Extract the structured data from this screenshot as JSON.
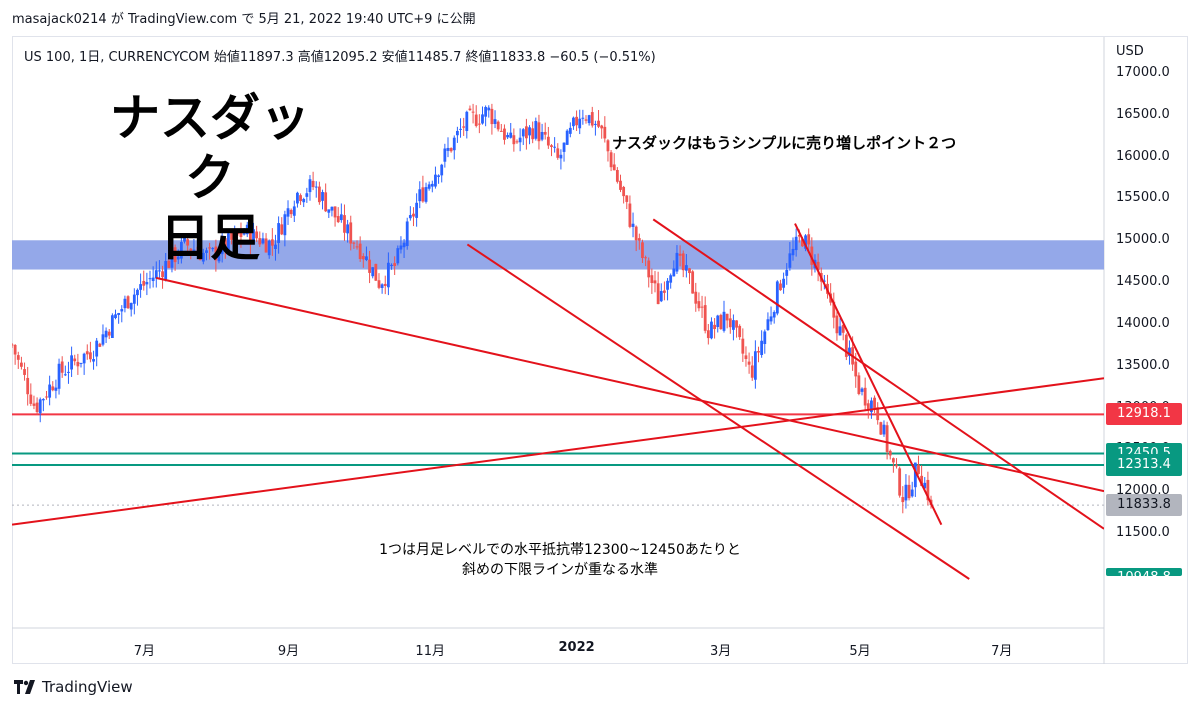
{
  "header": {
    "text": "masajack0214 が TradingView.com で 5月 21, 2022 19:40 UTC+9 に公開"
  },
  "legend": {
    "text": "US 100, 1日, CURRENCYCOM  始値11897.3  高値12095.2  安値11485.7  終値11833.8  −60.5 (−0.51%)"
  },
  "title": {
    "line1": "ナスダック",
    "line2": "日足"
  },
  "annotation_top": "ナスダックはもうシンプルに売り増しポイント２つ",
  "annotation_bottom": {
    "line1": "1つは月足レベルでの水平抵抗帯12300~12450あたりと",
    "line2": "斜めの下限ラインが重なる水準"
  },
  "axis": {
    "currency": "USD"
  },
  "brand": {
    "name": "TradingView"
  },
  "price_tags": [
    {
      "label": "12918.1",
      "value": 12918.1,
      "color": "#f23645"
    },
    {
      "label": "12450.5",
      "value": 12450.5,
      "color": "#089981"
    },
    {
      "label": "12313.4",
      "value": 12313.4,
      "color": "#089981"
    },
    {
      "label": "11833.8",
      "value": 11833.8,
      "color": "#b2b5be"
    },
    {
      "label": "10948.8",
      "value": 10948.8,
      "color": "#089981"
    }
  ],
  "chart_data": {
    "type": "candlestick",
    "symbol": "US 100",
    "timeframe": "1日",
    "ylim": [
      11000,
      17100
    ],
    "y_ticks": [
      "17000.0",
      "16500.0",
      "16000.0",
      "15500.0",
      "15000.0",
      "14500.0",
      "14000.0",
      "13500.0",
      "13000.0",
      "12500.0",
      "12000.0",
      "11500.0"
    ],
    "x_ticks": [
      "7月",
      "9月",
      "11月",
      "2022",
      "3月",
      "5月",
      "7月"
    ],
    "x_tick_days": [
      57,
      119,
      180,
      243,
      305,
      365,
      426
    ],
    "x_range_days": [
      0,
      470
    ],
    "last": {
      "open": 11897.3,
      "high": 12095.2,
      "low": 11485.7,
      "close": 11833.8,
      "change": -60.5,
      "change_pct": -0.51
    },
    "resistance_zone": [
      14650,
      15000
    ],
    "horizontal_lines": [
      {
        "value": 12918.1,
        "color": "#f23645"
      },
      {
        "value": 12450.5,
        "color": "#089981"
      },
      {
        "value": 12313.4,
        "color": "#089981"
      }
    ],
    "trend_lines": [
      {
        "from": [
          62,
          14550
        ],
        "to": [
          470,
          12000
        ]
      },
      {
        "from": [
          0,
          11600
        ],
        "to": [
          470,
          13350
        ]
      },
      {
        "from": [
          196,
          14950
        ],
        "to": [
          412,
          10950
        ]
      },
      {
        "from": [
          276,
          15250
        ],
        "to": [
          470,
          11550
        ]
      },
      {
        "from": [
          337,
          15200
        ],
        "to": [
          400,
          11600
        ]
      }
    ],
    "key_points": [
      {
        "day": 0,
        "close": 13750
      },
      {
        "day": 10,
        "close": 13000
      },
      {
        "day": 20,
        "close": 13400
      },
      {
        "day": 35,
        "close": 13700
      },
      {
        "day": 50,
        "close": 14300
      },
      {
        "day": 62,
        "close": 14600
      },
      {
        "day": 75,
        "close": 14950
      },
      {
        "day": 85,
        "close": 14800
      },
      {
        "day": 100,
        "close": 15100
      },
      {
        "day": 112,
        "close": 14950
      },
      {
        "day": 122,
        "close": 15550
      },
      {
        "day": 130,
        "close": 15650
      },
      {
        "day": 140,
        "close": 15250
      },
      {
        "day": 150,
        "close": 14900
      },
      {
        "day": 158,
        "close": 14500
      },
      {
        "day": 165,
        "close": 14700
      },
      {
        "day": 175,
        "close": 15500
      },
      {
        "day": 185,
        "close": 15950
      },
      {
        "day": 195,
        "close": 16400
      },
      {
        "day": 205,
        "close": 16550
      },
      {
        "day": 215,
        "close": 16150
      },
      {
        "day": 225,
        "close": 16350
      },
      {
        "day": 235,
        "close": 15950
      },
      {
        "day": 245,
        "close": 16550
      },
      {
        "day": 253,
        "close": 16350
      },
      {
        "day": 262,
        "close": 15600
      },
      {
        "day": 270,
        "close": 14900
      },
      {
        "day": 278,
        "close": 14300
      },
      {
        "day": 285,
        "close": 14800
      },
      {
        "day": 292,
        "close": 14500
      },
      {
        "day": 300,
        "close": 13900
      },
      {
        "day": 308,
        "close": 14100
      },
      {
        "day": 318,
        "close": 13400
      },
      {
        "day": 325,
        "close": 14000
      },
      {
        "day": 333,
        "close": 14700
      },
      {
        "day": 340,
        "close": 15050
      },
      {
        "day": 346,
        "close": 14700
      },
      {
        "day": 352,
        "close": 14200
      },
      {
        "day": 358,
        "close": 13800
      },
      {
        "day": 365,
        "close": 13200
      },
      {
        "day": 372,
        "close": 13000
      },
      {
        "day": 378,
        "close": 12400
      },
      {
        "day": 384,
        "close": 11900
      },
      {
        "day": 390,
        "close": 12300
      },
      {
        "day": 396,
        "close": 11834
      }
    ]
  },
  "colors": {
    "up": "#2962ff",
    "down": "#ef5350",
    "trend": "#e3121b",
    "zone": "#8ea3e8"
  }
}
